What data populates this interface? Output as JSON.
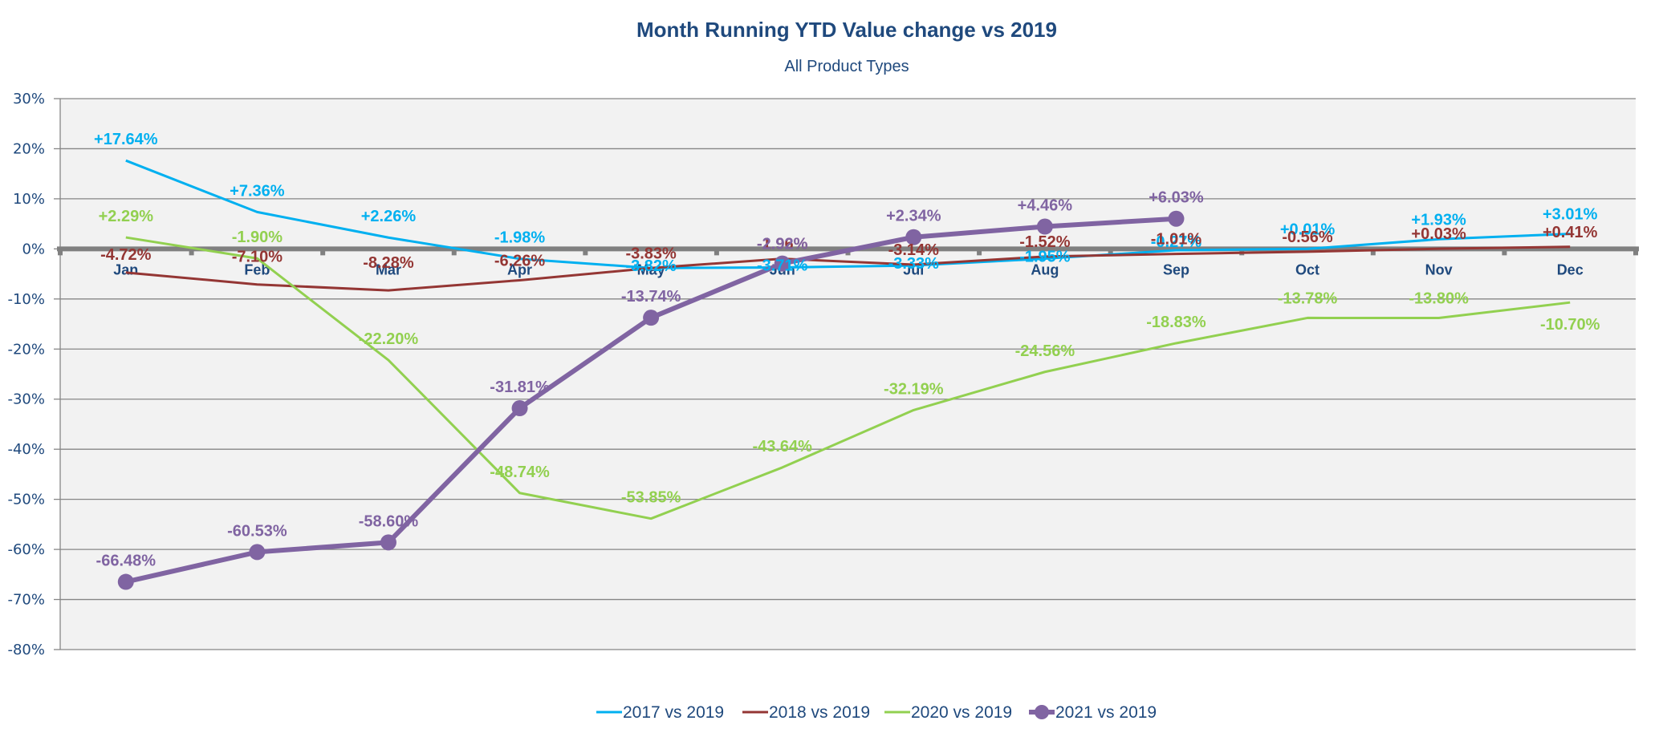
{
  "chart_data": {
    "type": "line",
    "title": "Month Running YTD Value change vs 2019",
    "subtitle": "All Product Types",
    "xlabel": "",
    "ylabel": "",
    "categories": [
      "Jan",
      "Feb",
      "Mar",
      "Apr",
      "May",
      "Jun",
      "Jul",
      "Aug",
      "Sep",
      "Oct",
      "Nov",
      "Dec"
    ],
    "ylim": [
      -80,
      30
    ],
    "yticks": [
      30,
      20,
      10,
      0,
      -10,
      -20,
      -30,
      -40,
      -50,
      -60,
      -70,
      -80
    ],
    "ytick_labels": [
      "30%",
      "20%",
      "10%",
      "0%",
      "-10%",
      "-20%",
      "-30%",
      "-40%",
      "-50%",
      "-60%",
      "-70%",
      "-80%"
    ],
    "grid": true,
    "legend_position": "bottom",
    "series": [
      {
        "name": "2017 vs 2019",
        "color": "#00b0f0",
        "marker": false,
        "values": [
          17.64,
          7.36,
          2.26,
          -1.98,
          -3.82,
          -3.71,
          -3.33,
          -1.95,
          -0.27,
          0.01,
          1.93,
          3.01
        ],
        "labels": [
          "+17.64%",
          "+7.36%",
          "+2.26%",
          "-1.98%",
          "-3.82%",
          "-3.71%",
          "-3.33%",
          "-1.95%",
          "-0.27%",
          "+0.01%",
          "+1.93%",
          "+3.01%"
        ]
      },
      {
        "name": "2018 vs 2019",
        "color": "#943634",
        "marker": false,
        "values": [
          -4.72,
          -7.1,
          -8.28,
          -6.26,
          -3.83,
          -1.96,
          -3.14,
          -1.52,
          -1.01,
          -0.56,
          0.03,
          0.41
        ],
        "labels": [
          "-4.72%",
          "-7.10%",
          "-8.28%",
          "-6.26%",
          "-3.83%",
          "-1.96%",
          "-3.14%",
          "-1.52%",
          "-1.01%",
          "-0.56%",
          "+0.03%",
          "+0.41%"
        ]
      },
      {
        "name": "2020 vs 2019",
        "color": "#92d050",
        "marker": false,
        "values": [
          2.29,
          -1.9,
          -22.2,
          -48.74,
          -53.85,
          -43.64,
          -32.19,
          -24.56,
          -18.83,
          -13.78,
          -13.8,
          -10.7
        ],
        "labels": [
          "+2.29%",
          "-1.90%",
          "-22.20%",
          "-48.74%",
          "-53.85%",
          "-43.64%",
          "-32.19%",
          "-24.56%",
          "-18.83%",
          "-13.78%",
          "-13.80%",
          "-10.70%"
        ]
      },
      {
        "name": "2021 vs 2019",
        "color": "#8064a2",
        "marker": true,
        "values": [
          -66.48,
          -60.53,
          -58.6,
          -31.81,
          -13.74,
          -2.92,
          2.34,
          4.46,
          6.03
        ],
        "labels": [
          "-66.48%",
          "-60.53%",
          "-58.60%",
          "-31.81%",
          "-13.74%",
          "-2.92%",
          "+2.34%",
          "+4.46%",
          "+6.03%"
        ]
      }
    ]
  }
}
